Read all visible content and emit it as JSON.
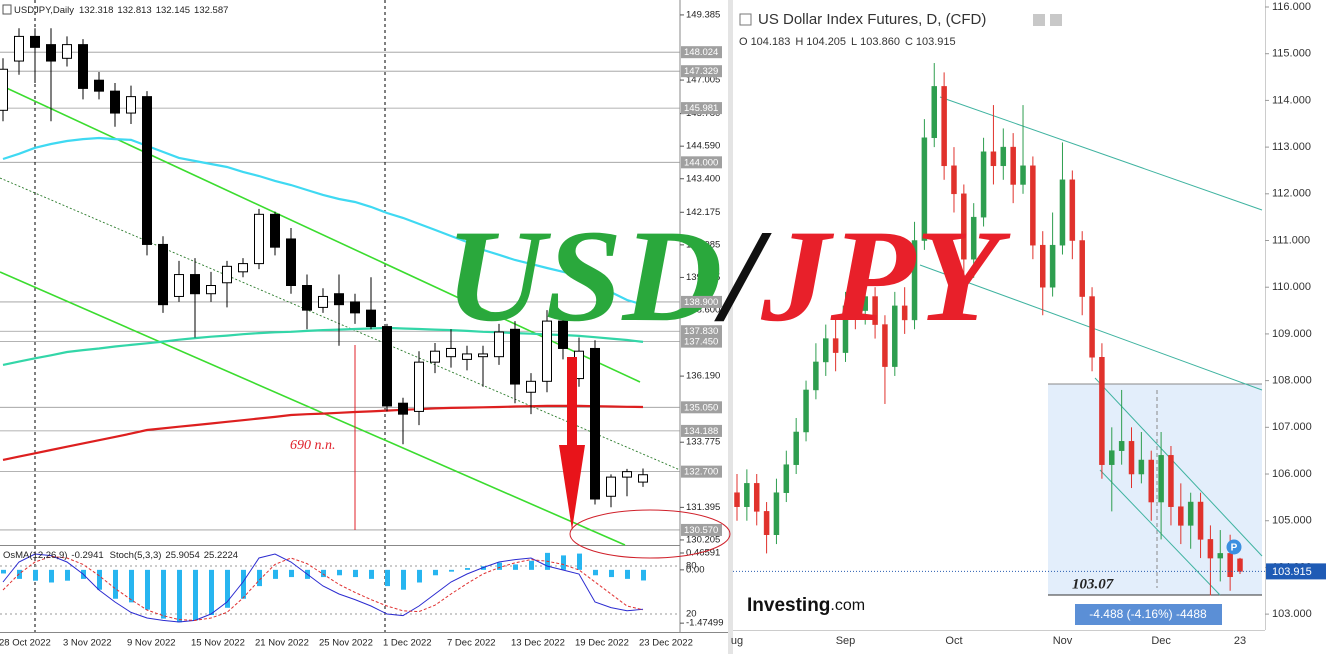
{
  "chart_data": [
    {
      "type": "candlestick",
      "symbol": "USDJPY,Daily",
      "categories": [
        "28 Oct 2022",
        null,
        null,
        null,
        "3 Nov 2022",
        null,
        null,
        null,
        "9 Nov 2022",
        null,
        null,
        null,
        "15 Nov 2022",
        null,
        null,
        null,
        "21 Nov 2022",
        null,
        null,
        null,
        "25 Nov 2022",
        null,
        null,
        null,
        "1 Dec 2022",
        null,
        null,
        null,
        "7 Dec 2022",
        null,
        null,
        null,
        "13 Dec 2022",
        null,
        null,
        null,
        "19 Dec 2022",
        null,
        null,
        null,
        "23 Dec 2022"
      ],
      "open": [
        145.9,
        147.7,
        148.6,
        148.3,
        147.8,
        148.3,
        147.0,
        146.6,
        145.8,
        146.4,
        141.0,
        139.1,
        139.9,
        139.2,
        139.6,
        140.0,
        140.3,
        142.1,
        141.2,
        139.5,
        138.7,
        139.2,
        138.9,
        138.6,
        138.0,
        135.2,
        134.9,
        136.7,
        136.9,
        136.8,
        136.9,
        136.9,
        137.9,
        135.6,
        136.0,
        138.2,
        136.1,
        137.2,
        131.8,
        132.5,
        132.318
      ],
      "high": [
        147.8,
        148.9,
        148.9,
        148.9,
        148.6,
        148.5,
        147.3,
        146.9,
        146.8,
        146.6,
        141.3,
        140.4,
        140.5,
        140.0,
        140.4,
        140.5,
        142.3,
        142.2,
        141.6,
        139.9,
        139.4,
        139.9,
        139.2,
        139.8,
        138.1,
        135.4,
        137.1,
        137.4,
        137.9,
        137.3,
        137.3,
        138.1,
        138.2,
        136.3,
        138.6,
        138.3,
        137.6,
        137.5,
        132.6,
        132.8,
        132.813
      ],
      "low": [
        145.5,
        147.2,
        146.9,
        145.5,
        147.5,
        146.3,
        146.3,
        145.3,
        145.4,
        140.6,
        138.5,
        138.9,
        137.6,
        138.9,
        138.7,
        139.8,
        140.1,
        140.6,
        139.2,
        137.9,
        138.5,
        137.3,
        138.1,
        137.9,
        134.9,
        133.7,
        134.4,
        136.3,
        136.5,
        136.4,
        135.8,
        136.6,
        135.2,
        134.8,
        135.6,
        136.8,
        135.8,
        131.5,
        131.4,
        131.8,
        132.145
      ],
      "close": [
        147.4,
        148.6,
        148.2,
        147.7,
        148.3,
        146.7,
        146.6,
        145.8,
        146.4,
        141.0,
        138.8,
        139.9,
        139.2,
        139.5,
        140.2,
        140.3,
        142.1,
        140.9,
        139.5,
        138.6,
        139.1,
        138.8,
        138.5,
        138.0,
        135.1,
        134.8,
        136.7,
        137.1,
        137.2,
        137.0,
        137.0,
        137.8,
        135.9,
        136.0,
        138.2,
        137.2,
        137.1,
        131.7,
        132.5,
        132.7,
        132.587
      ],
      "up_color": "#ffffff",
      "down_color": "#000000",
      "ylim": [
        130.02,
        149.93
      ],
      "yticks": [
        149.385,
        147.005,
        {
          "value": 145.78,
          "label": "145.780"
        },
        {
          "value": 144.59,
          "label": "144.590"
        },
        {
          "value": 143.4,
          "label": "143.400"
        },
        142.175,
        140.985,
        139.795,
        {
          "value": 138.6,
          "label": "138.600"
        },
        {
          "value": 136.19,
          "label": "136.190"
        },
        133.775,
        131.395,
        130.205
      ],
      "levels": [
        148.024,
        147.329,
        145.981,
        {
          "value": 144,
          "label": "144.000"
        },
        {
          "value": 138.9,
          "label": "138.900"
        },
        {
          "value": 137.83,
          "label": "137.830"
        },
        {
          "value": 137.45,
          "label": "137.450"
        },
        {
          "value": 135.05,
          "label": "135.050"
        },
        134.188,
        {
          "value": 132.7,
          "label": "132.700"
        },
        {
          "value": 130.57,
          "label": "130.570"
        }
      ],
      "lines": [
        {
          "color": "#3fd9f2",
          "values": [
            144.12,
            144.31,
            144.53,
            144.67,
            144.78,
            144.85,
            144.89,
            144.85,
            144.82,
            144.6,
            144.38,
            144.16,
            144.05,
            143.94,
            143.83,
            143.65,
            143.5,
            143.32,
            143.17,
            142.99,
            142.81,
            142.66,
            142.55,
            142.37,
            142.15,
            141.97,
            141.75,
            141.53,
            141.31,
            141.09,
            140.8,
            140.62,
            140.43,
            140.29,
            140.14,
            140.0,
            139.85,
            139.59,
            139.26,
            138.97,
            138.8
          ]
        },
        {
          "color": "#33d6a8",
          "values": [
            136.6,
            136.72,
            136.84,
            136.95,
            137.07,
            137.14,
            137.2,
            137.27,
            137.33,
            137.39,
            137.45,
            137.52,
            137.58,
            137.63,
            137.67,
            137.72,
            137.76,
            137.79,
            137.81,
            137.84,
            137.87,
            137.89,
            137.91,
            137.93,
            137.95,
            137.93,
            137.91,
            137.89,
            137.87,
            137.84,
            137.81,
            137.79,
            137.76,
            137.74,
            137.71,
            137.69,
            137.66,
            137.61,
            137.56,
            137.51,
            137.44
          ]
        },
        {
          "color": "#dd1f1f",
          "values": [
            133.13,
            133.25,
            133.37,
            133.49,
            133.61,
            133.73,
            133.85,
            133.97,
            134.09,
            134.22,
            134.28,
            134.34,
            134.4,
            134.46,
            134.52,
            134.58,
            134.64,
            134.7,
            134.77,
            134.8,
            134.82,
            134.85,
            134.88,
            134.9,
            134.93,
            134.96,
            134.98,
            135.01,
            135.03,
            135.04,
            135.05,
            135.06,
            135.08,
            135.09,
            135.1,
            135.1,
            135.1,
            135.09,
            135.08,
            135.07,
            135.06
          ]
        }
      ],
      "annotation": "690 п.п.",
      "indicator": {
        "osma_label": "OsMA(12,26,9)",
        "osma_color": "#27b5f0",
        "osma": [
          -0.1,
          -0.25,
          -0.3,
          -0.35,
          -0.3,
          -0.25,
          -0.55,
          -0.8,
          -0.9,
          -1.1,
          -1.35,
          -1.45,
          -1.4,
          -1.25,
          -1.05,
          -0.8,
          -0.45,
          -0.25,
          -0.2,
          -0.25,
          -0.2,
          -0.15,
          -0.2,
          -0.25,
          -0.45,
          -0.55,
          -0.35,
          -0.15,
          -0.05,
          0.05,
          0.1,
          0.2,
          0.15,
          0.25,
          0.47,
          0.4,
          0.45,
          -0.15,
          -0.2,
          -0.25,
          -0.2941
        ],
        "ylim": [
          -1.72,
          0.66
        ],
        "yticks": [
          0.46591,
          {
            "value": 0,
            "label": "0.00"
          },
          -1.47499
        ],
        "stoch_label": "Stoch(5,3,3)",
        "stoch_ylim": [
          -2.5,
          105
        ],
        "stoch_yticks": [
          20,
          80
        ],
        "k_color": "#2b2bd0",
        "d_color": "#e03030",
        "k": [
          60,
          85,
          95,
          93,
          85,
          70,
          50,
          35,
          22,
          15,
          12,
          10,
          12,
          20,
          35,
          60,
          90,
          95,
          85,
          70,
          55,
          45,
          38,
          30,
          20,
          18,
          30,
          45,
          60,
          70,
          78,
          85,
          88,
          90,
          80,
          75,
          70,
          35,
          28,
          24,
          25.9054
        ],
        "d": [
          50,
          70,
          85,
          92,
          90,
          82,
          68,
          52,
          38,
          25,
          18,
          13,
          12,
          15,
          22,
          40,
          62,
          82,
          90,
          83,
          70,
          57,
          47,
          38,
          30,
          24,
          23,
          31,
          45,
          58,
          70,
          78,
          84,
          88,
          86,
          82,
          75,
          60,
          45,
          30,
          25.2224
        ]
      }
    },
    {
      "type": "candlestick",
      "title": "US Dollar Index Futures, D, (CFD)",
      "ohlc_labels": [
        "O",
        "H",
        "L",
        "C"
      ],
      "header_values": [
        "104.183",
        "104.205",
        "103.860",
        "103.915"
      ],
      "categories": [
        "ug",
        null,
        null,
        null,
        null,
        null,
        null,
        null,
        null,
        null,
        null,
        "Sep",
        null,
        null,
        null,
        null,
        null,
        null,
        null,
        null,
        null,
        null,
        "Oct",
        null,
        null,
        null,
        null,
        null,
        null,
        null,
        null,
        null,
        null,
        "Nov",
        null,
        null,
        null,
        null,
        null,
        null,
        null,
        null,
        null,
        "Dec",
        null,
        null,
        null,
        null,
        null,
        null,
        null,
        "23"
      ],
      "open": [
        105.6,
        105.3,
        105.8,
        105.2,
        104.7,
        105.6,
        106.2,
        106.9,
        107.8,
        108.4,
        108.9,
        108.6,
        109.6,
        109.5,
        109.8,
        109.2,
        108.3,
        109.6,
        109.3,
        111.0,
        113.2,
        114.3,
        112.6,
        112.0,
        110.6,
        111.5,
        112.9,
        112.6,
        113.0,
        112.2,
        112.6,
        110.9,
        110.0,
        110.9,
        112.3,
        111.0,
        109.8,
        108.5,
        106.2,
        106.5,
        106.7,
        106.0,
        106.3,
        105.4,
        106.4,
        105.3,
        104.9,
        105.4,
        104.6,
        104.2,
        104.3,
        104.183
      ],
      "high": [
        106.0,
        106.1,
        106.0,
        105.4,
        105.9,
        106.5,
        107.2,
        108.0,
        108.8,
        109.2,
        109.3,
        109.9,
        110.0,
        110.2,
        110.0,
        109.4,
        109.9,
        110.0,
        111.4,
        113.6,
        114.8,
        114.6,
        113.0,
        112.2,
        111.8,
        113.2,
        113.9,
        113.4,
        113.3,
        113.9,
        112.8,
        111.2,
        111.6,
        113.1,
        112.5,
        111.2,
        110.0,
        108.8,
        107.0,
        107.8,
        107.0,
        106.9,
        106.5,
        106.9,
        106.6,
        105.8,
        105.6,
        105.6,
        104.9,
        104.8,
        104.7,
        104.205
      ],
      "low": [
        105.0,
        105.0,
        104.9,
        104.3,
        104.5,
        105.4,
        106.0,
        106.7,
        107.6,
        108.1,
        108.2,
        108.4,
        109.1,
        109.2,
        108.9,
        107.5,
        108.1,
        109.0,
        109.1,
        110.8,
        113.0,
        112.3,
        111.6,
        110.0,
        110.2,
        111.3,
        112.2,
        112.3,
        111.8,
        112.0,
        110.6,
        109.4,
        109.8,
        110.7,
        110.6,
        109.4,
        108.2,
        105.9,
        105.2,
        106.2,
        105.7,
        105.8,
        105.0,
        104.6,
        104.9,
        104.5,
        104.4,
        104.2,
        103.4,
        103.7,
        103.5,
        103.86
      ],
      "close": [
        105.3,
        105.8,
        105.2,
        104.7,
        105.6,
        106.2,
        106.9,
        107.8,
        108.4,
        108.9,
        108.6,
        109.6,
        109.5,
        109.8,
        109.2,
        108.3,
        109.6,
        109.3,
        111.0,
        113.2,
        114.3,
        112.6,
        112.0,
        110.6,
        111.5,
        112.9,
        112.6,
        113.0,
        112.2,
        112.6,
        110.9,
        110.0,
        110.9,
        112.3,
        111.0,
        109.8,
        108.5,
        106.2,
        106.5,
        106.7,
        106.0,
        106.3,
        105.4,
        106.4,
        105.3,
        104.9,
        105.4,
        104.6,
        104.2,
        104.3,
        103.8,
        103.915
      ],
      "up_color": "#2e9e4f",
      "down_color": "#e0322c",
      "ylim": [
        102.66,
        116.15
      ],
      "yticks": [
        {
          "value": 103,
          "label": "103.000"
        },
        {
          "value": 104,
          "label": "104.000"
        },
        {
          "value": 105,
          "label": "105.000"
        },
        {
          "value": 106,
          "label": "106.000"
        },
        {
          "value": 107,
          "label": "107.000"
        },
        {
          "value": 108,
          "label": "108.000"
        },
        {
          "value": 109,
          "label": "109.000"
        },
        {
          "value": 110,
          "label": "110.000"
        },
        {
          "value": 111,
          "label": "111.000"
        },
        {
          "value": 112,
          "label": "112.000"
        },
        {
          "value": 113,
          "label": "113.000"
        },
        {
          "value": 114,
          "label": "114.000"
        },
        {
          "value": 115,
          "label": "115.000"
        },
        {
          "value": 116,
          "label": "116.000"
        }
      ],
      "measure_level": 103.07,
      "measure_text": "-4.488 (-4.16%) -4488",
      "marker": "P",
      "logo": [
        "Investing",
        ".com"
      ]
    }
  ],
  "overlay": {
    "parts": [
      "USD",
      "/",
      "JPY"
    ],
    "colors": [
      "#2aa83c",
      "#111111",
      "#e8202a"
    ]
  }
}
